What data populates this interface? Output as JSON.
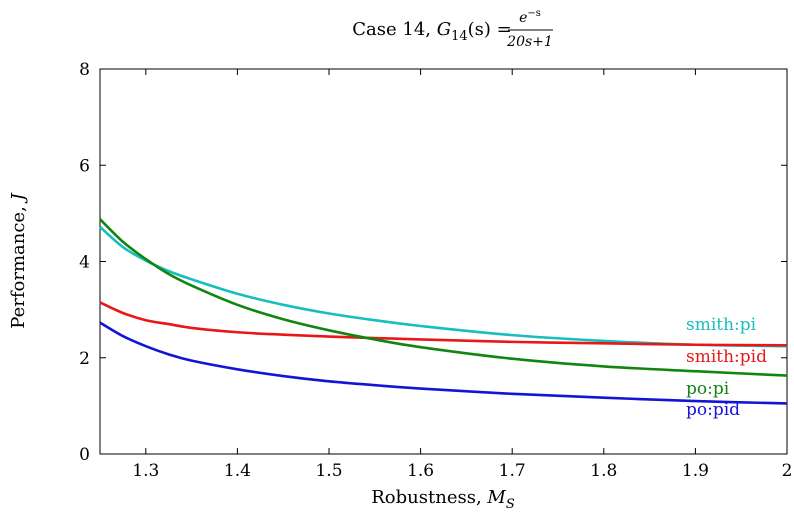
{
  "chart_data": {
    "type": "line",
    "title": {
      "prefix": "Case 14, ",
      "func_name": "G",
      "func_sub": "14",
      "func_arg": "(s) = ",
      "numerator": "e",
      "numerator_sup": "−s",
      "denominator": "20s+1"
    },
    "xlabel": {
      "text": "Robustness, ",
      "symbol": "M",
      "sub": "S"
    },
    "ylabel": {
      "text": "Performance, ",
      "symbol": "J"
    },
    "xlim": [
      1.25,
      2.0
    ],
    "ylim": [
      0,
      8
    ],
    "x_ticks": [
      "1.3",
      "1.4",
      "1.5",
      "1.6",
      "1.7",
      "1.8",
      "1.9",
      "2"
    ],
    "y_ticks": [
      "0",
      "2",
      "4",
      "6",
      "8"
    ],
    "grid": false,
    "x": [
      1.25,
      1.275,
      1.3,
      1.325,
      1.35,
      1.4,
      1.45,
      1.5,
      1.55,
      1.6,
      1.7,
      1.8,
      1.9,
      2.0
    ],
    "series": [
      {
        "name": "smith:pi",
        "color": "#17BEBE",
        "values": [
          4.72,
          4.3,
          4.02,
          3.8,
          3.63,
          3.33,
          3.1,
          2.92,
          2.78,
          2.66,
          2.47,
          2.35,
          2.27,
          2.24
        ]
      },
      {
        "name": "smith:pid",
        "color": "#E81818",
        "values": [
          3.15,
          2.93,
          2.78,
          2.7,
          2.62,
          2.53,
          2.48,
          2.44,
          2.41,
          2.38,
          2.33,
          2.3,
          2.27,
          2.26
        ]
      },
      {
        "name": "po:pi",
        "color": "#118511",
        "values": [
          4.88,
          4.41,
          4.05,
          3.74,
          3.5,
          3.1,
          2.8,
          2.57,
          2.38,
          2.22,
          1.98,
          1.82,
          1.72,
          1.63
        ]
      },
      {
        "name": "po:pid",
        "color": "#1414D9",
        "values": [
          2.73,
          2.45,
          2.24,
          2.07,
          1.94,
          1.76,
          1.62,
          1.51,
          1.43,
          1.36,
          1.25,
          1.17,
          1.1,
          1.05
        ]
      }
    ]
  }
}
